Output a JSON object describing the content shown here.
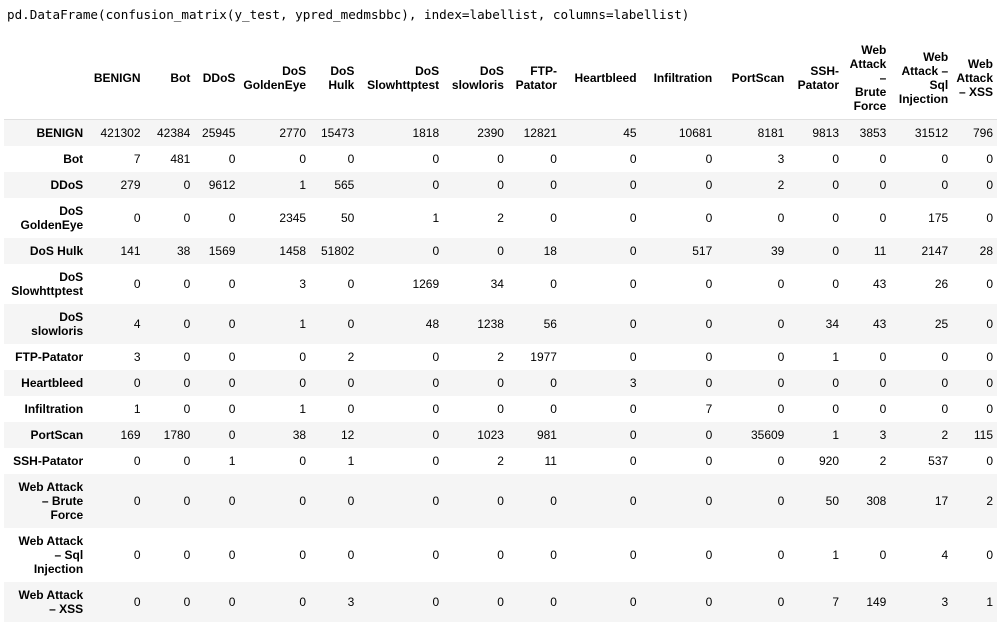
{
  "code": "pd.DataFrame(confusion_matrix(y_test, ypred_medmsbbc), index=labellist, columns=labellist)",
  "columns": [
    {
      "label": "BENIGN",
      "lines": [
        "BENIGN"
      ]
    },
    {
      "label": "Bot",
      "lines": [
        "Bot"
      ]
    },
    {
      "label": "DDoS",
      "lines": [
        "DDoS"
      ]
    },
    {
      "label": "DoS GoldenEye",
      "lines": [
        "DoS",
        "GoldenEye"
      ]
    },
    {
      "label": "DoS Hulk",
      "lines": [
        "DoS",
        "Hulk"
      ]
    },
    {
      "label": "DoS Slowhttptest",
      "lines": [
        "DoS",
        "Slowhttptest"
      ]
    },
    {
      "label": "DoS slowloris",
      "lines": [
        "DoS",
        "slowloris"
      ]
    },
    {
      "label": "FTP-Patator",
      "lines": [
        "FTP-",
        "Patator"
      ]
    },
    {
      "label": "Heartbleed",
      "lines": [
        "Heartbleed"
      ]
    },
    {
      "label": "Infiltration",
      "lines": [
        "Infiltration"
      ]
    },
    {
      "label": "PortScan",
      "lines": [
        "PortScan"
      ]
    },
    {
      "label": "SSH-Patator",
      "lines": [
        "SSH-",
        "Patator"
      ]
    },
    {
      "label": "Web Attack – Brute Force",
      "lines": [
        "Web",
        "Attack",
        "–",
        "Brute",
        "Force"
      ]
    },
    {
      "label": "Web Attack – Sql Injection",
      "lines": [
        "Web",
        "Attack –",
        "Sql",
        "Injection"
      ]
    },
    {
      "label": "Web Attack – XSS",
      "lines": [
        "Web",
        "Attack",
        "– XSS"
      ]
    }
  ],
  "rows": [
    {
      "label": "BENIGN",
      "lines": [
        "BENIGN"
      ],
      "values": [
        421302,
        42384,
        25945,
        2770,
        15473,
        1818,
        2390,
        12821,
        45,
        10681,
        8181,
        9813,
        3853,
        31512,
        796
      ]
    },
    {
      "label": "Bot",
      "lines": [
        "Bot"
      ],
      "values": [
        7,
        481,
        0,
        0,
        0,
        0,
        0,
        0,
        0,
        0,
        3,
        0,
        0,
        0,
        0
      ]
    },
    {
      "label": "DDoS",
      "lines": [
        "DDoS"
      ],
      "values": [
        279,
        0,
        9612,
        1,
        565,
        0,
        0,
        0,
        0,
        0,
        2,
        0,
        0,
        0,
        0
      ]
    },
    {
      "label": "DoS GoldenEye",
      "lines": [
        "DoS",
        "GoldenEye"
      ],
      "values": [
        0,
        0,
        0,
        2345,
        50,
        1,
        2,
        0,
        0,
        0,
        0,
        0,
        0,
        175,
        0
      ]
    },
    {
      "label": "DoS Hulk",
      "lines": [
        "DoS Hulk"
      ],
      "values": [
        141,
        38,
        1569,
        1458,
        51802,
        0,
        0,
        18,
        0,
        517,
        39,
        0,
        11,
        2147,
        28
      ]
    },
    {
      "label": "DoS Slowhttptest",
      "lines": [
        "DoS",
        "Slowhttptest"
      ],
      "values": [
        0,
        0,
        0,
        3,
        0,
        1269,
        34,
        0,
        0,
        0,
        0,
        0,
        43,
        26,
        0
      ]
    },
    {
      "label": "DoS slowloris",
      "lines": [
        "DoS",
        "slowloris"
      ],
      "values": [
        4,
        0,
        0,
        1,
        0,
        48,
        1238,
        56,
        0,
        0,
        0,
        34,
        43,
        25,
        0
      ]
    },
    {
      "label": "FTP-Patator",
      "lines": [
        "FTP-Patator"
      ],
      "values": [
        3,
        0,
        0,
        0,
        2,
        0,
        2,
        1977,
        0,
        0,
        0,
        1,
        0,
        0,
        0
      ]
    },
    {
      "label": "Heartbleed",
      "lines": [
        "Heartbleed"
      ],
      "values": [
        0,
        0,
        0,
        0,
        0,
        0,
        0,
        0,
        3,
        0,
        0,
        0,
        0,
        0,
        0
      ]
    },
    {
      "label": "Infiltration",
      "lines": [
        "Infiltration"
      ],
      "values": [
        1,
        0,
        0,
        1,
        0,
        0,
        0,
        0,
        0,
        7,
        0,
        0,
        0,
        0,
        0
      ]
    },
    {
      "label": "PortScan",
      "lines": [
        "PortScan"
      ],
      "values": [
        169,
        1780,
        0,
        38,
        12,
        0,
        1023,
        981,
        0,
        0,
        35609,
        1,
        3,
        2,
        115
      ]
    },
    {
      "label": "SSH-Patator",
      "lines": [
        "SSH-Patator"
      ],
      "values": [
        0,
        0,
        1,
        0,
        1,
        0,
        2,
        11,
        0,
        0,
        0,
        920,
        2,
        537,
        0
      ]
    },
    {
      "label": "Web Attack – Brute Force",
      "lines": [
        "Web Attack",
        "– Brute",
        "Force"
      ],
      "values": [
        0,
        0,
        0,
        0,
        0,
        0,
        0,
        0,
        0,
        0,
        0,
        50,
        308,
        17,
        2
      ]
    },
    {
      "label": "Web Attack – Sql Injection",
      "lines": [
        "Web Attack",
        "– Sql",
        "Injection"
      ],
      "values": [
        0,
        0,
        0,
        0,
        0,
        0,
        0,
        0,
        0,
        0,
        0,
        1,
        0,
        4,
        0
      ]
    },
    {
      "label": "Web Attack – XSS",
      "lines": [
        "Web Attack",
        "– XSS"
      ],
      "values": [
        0,
        0,
        0,
        0,
        3,
        0,
        0,
        0,
        0,
        0,
        0,
        7,
        149,
        3,
        1
      ]
    }
  ]
}
